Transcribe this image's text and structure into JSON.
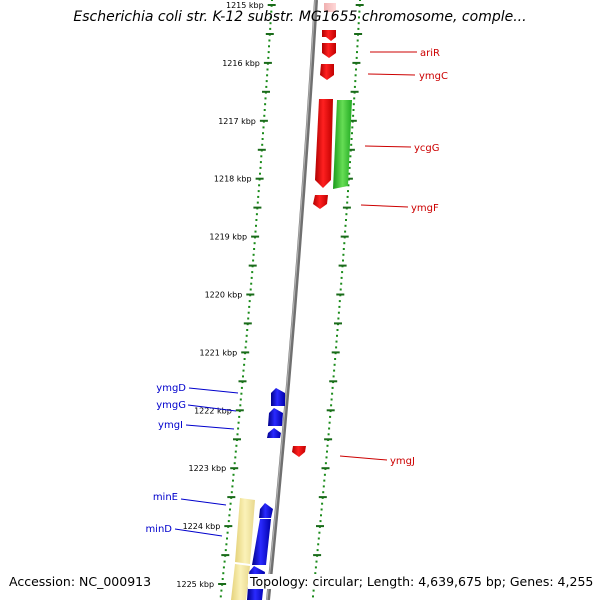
{
  "title": "Escherichia coli str. K-12 substr. MG1655 chromosome, comple...",
  "footer": {
    "accession": "Accession: NC_000913",
    "topology": "Topology: circular; Length: 4,639,675 bp; Genes: 4,255"
  },
  "colors": {
    "forward_gene": "#ff0000",
    "reverse_gene": "#00c000",
    "minus_label_gene": "#0000ff",
    "highlight_gene": "#f0e08a",
    "tick_major": "#1a6b1a",
    "tick_minor": "#1a8a1a",
    "backbone": "#808080",
    "red_label": "#cc0000",
    "blue_label": "#0000cc"
  },
  "ticks": [
    {
      "label": "1215 kbp",
      "kbp": 1215
    },
    {
      "label": "1216 kbp",
      "kbp": 1216
    },
    {
      "label": "1217 kbp",
      "kbp": 1217
    },
    {
      "label": "1218 kbp",
      "kbp": 1218
    },
    {
      "label": "1219 kbp",
      "kbp": 1219
    },
    {
      "label": "1220 kbp",
      "kbp": 1220
    },
    {
      "label": "1221 kbp",
      "kbp": 1221
    },
    {
      "label": "1222 kbp",
      "kbp": 1222
    },
    {
      "label": "1223 kbp",
      "kbp": 1223
    },
    {
      "label": "1224 kbp",
      "kbp": 1224
    },
    {
      "label": "1225 kbp",
      "kbp": 1225
    }
  ],
  "gene_labels_right": [
    {
      "name": "ariR"
    },
    {
      "name": "ymgC"
    },
    {
      "name": "ycgG"
    },
    {
      "name": "ymgF"
    },
    {
      "name": "ymgJ"
    }
  ],
  "gene_labels_left": [
    {
      "name": "ymgD"
    },
    {
      "name": "ymgG"
    },
    {
      "name": "ymgI"
    },
    {
      "name": "minE"
    },
    {
      "name": "minD"
    }
  ]
}
